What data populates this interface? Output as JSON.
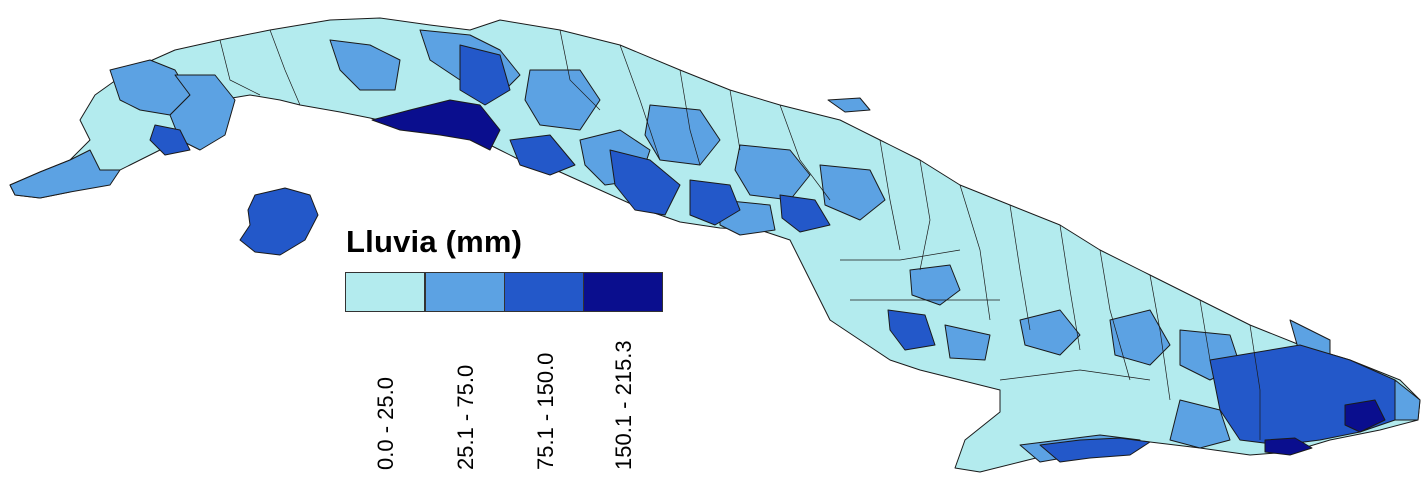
{
  "legend": {
    "title": "Lluvia (mm)",
    "classes": [
      {
        "label": "0.0 - 25.0",
        "color": "#b3ebee"
      },
      {
        "label": "25.1 - 75.0",
        "color": "#5ca2e3"
      },
      {
        "label": "75.1 - 150.0",
        "color": "#2358c9"
      },
      {
        "label": "150.1 - 215.3",
        "color": "#0a0e8e"
      }
    ]
  }
}
